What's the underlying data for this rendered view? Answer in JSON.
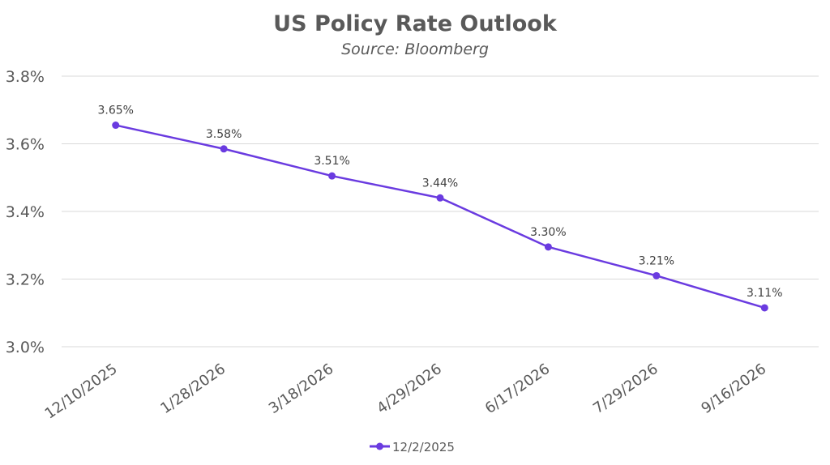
{
  "chart_data": {
    "type": "line",
    "title": "US Policy Rate Outlook",
    "subtitle": "Source: Bloomberg",
    "xlabel": "",
    "ylabel": "",
    "categories": [
      "12/10/2025",
      "1/28/2026",
      "3/18/2026",
      "4/29/2026",
      "6/17/2026",
      "7/29/2026",
      "9/16/2026"
    ],
    "series": [
      {
        "name": "12/2/2025",
        "values": [
          3.655,
          3.585,
          3.505,
          3.44,
          3.295,
          3.21,
          3.115
        ],
        "labels": [
          "3.65%",
          "3.58%",
          "3.51%",
          "3.44%",
          "3.30%",
          "3.21%",
          "3.11%"
        ],
        "color": "#6a3be0"
      }
    ],
    "ylim": [
      3.0,
      3.8
    ],
    "yticks": [
      3.0,
      3.2,
      3.4,
      3.6,
      3.8
    ],
    "ytick_labels": [
      "3.0%",
      "3.2%",
      "3.4%",
      "3.6%",
      "3.8%"
    ],
    "grid": true,
    "legend_position": "bottom"
  }
}
